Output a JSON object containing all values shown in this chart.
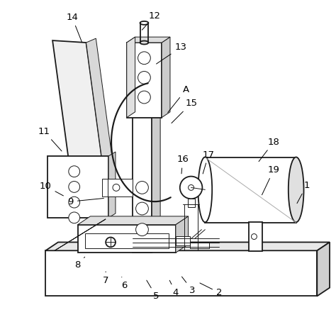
{
  "bg_color": "#ffffff",
  "line_color": "#1a1a1a",
  "gray_color": "#aaaaaa",
  "lw_main": 1.3,
  "lw_thin": 0.7,
  "lw_thick": 1.8,
  "annotations": [
    [
      "1",
      435,
      262,
      420,
      290
    ],
    [
      "2",
      310,
      415,
      280,
      400
    ],
    [
      "3",
      272,
      412,
      255,
      390
    ],
    [
      "4",
      248,
      415,
      238,
      395
    ],
    [
      "5",
      220,
      420,
      205,
      395
    ],
    [
      "6",
      175,
      405,
      170,
      390
    ],
    [
      "7",
      148,
      398,
      148,
      385
    ],
    [
      "8",
      108,
      375,
      120,
      362
    ],
    [
      "9",
      98,
      285,
      148,
      280
    ],
    [
      "10",
      62,
      263,
      90,
      278
    ],
    [
      "11",
      60,
      185,
      87,
      215
    ],
    [
      "12",
      218,
      20,
      198,
      42
    ],
    [
      "13",
      255,
      65,
      218,
      90
    ],
    [
      "14",
      100,
      22,
      115,
      60
    ],
    [
      "15",
      270,
      145,
      240,
      175
    ],
    [
      "16",
      258,
      225,
      256,
      248
    ],
    [
      "17",
      295,
      218,
      286,
      248
    ],
    [
      "18",
      388,
      200,
      365,
      230
    ],
    [
      "19",
      388,
      240,
      370,
      278
    ],
    [
      "A",
      263,
      125,
      235,
      160
    ]
  ]
}
